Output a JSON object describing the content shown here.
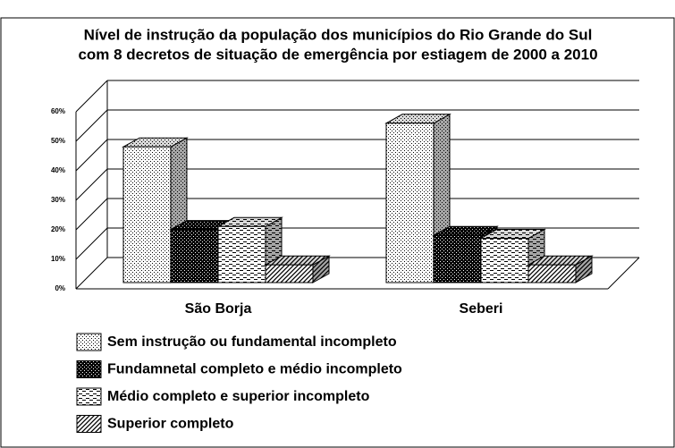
{
  "chart_data": {
    "type": "bar3d",
    "title": "Nível de instrução da população dos municípios do Rio Grande do Sul",
    "subtitle": "com 8 decretos de situação de emergência por estiagem de 2000 a 2010",
    "categories": [
      "São Borja",
      "Seberi"
    ],
    "series": [
      {
        "name": "Sem instrução ou fundamental incompleto",
        "values": [
          46,
          54
        ]
      },
      {
        "name": "Fundamnetal completo e médio incompleto",
        "values": [
          18,
          16
        ]
      },
      {
        "name": "Médio completo e superior incompleto",
        "values": [
          19,
          15
        ]
      },
      {
        "name": "Superior completo",
        "values": [
          6,
          6
        ]
      }
    ],
    "ylim": [
      0,
      60
    ],
    "yticks": [
      {
        "value": 0,
        "label": "0%"
      },
      {
        "value": 10,
        "label": "10%"
      },
      {
        "value": 20,
        "label": "20%"
      },
      {
        "value": 30,
        "label": "30%"
      },
      {
        "value": 40,
        "label": "40%"
      },
      {
        "value": 50,
        "label": "50%"
      },
      {
        "value": 60,
        "label": "60%"
      }
    ],
    "grid": true
  }
}
